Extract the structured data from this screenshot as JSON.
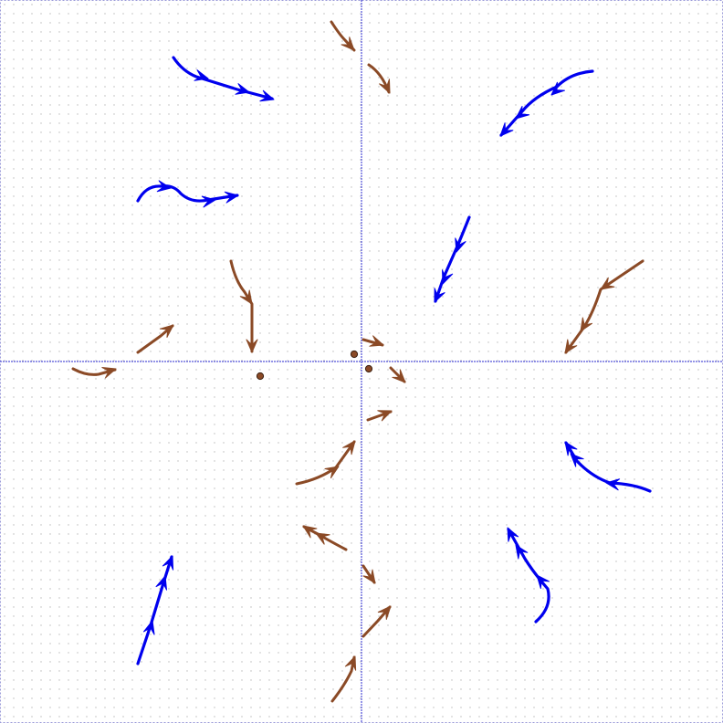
{
  "colors": {
    "background": "#ffffff",
    "grid_dot": "#b9b9b9",
    "axis": "#2a2ad0",
    "blue_curve": "#0000ee",
    "brown_curve": "#8b4a26",
    "point_fill": "#8b4a26",
    "point_stroke": "#3a1f10"
  },
  "curve_types": [
    "blue",
    "brown"
  ]
}
